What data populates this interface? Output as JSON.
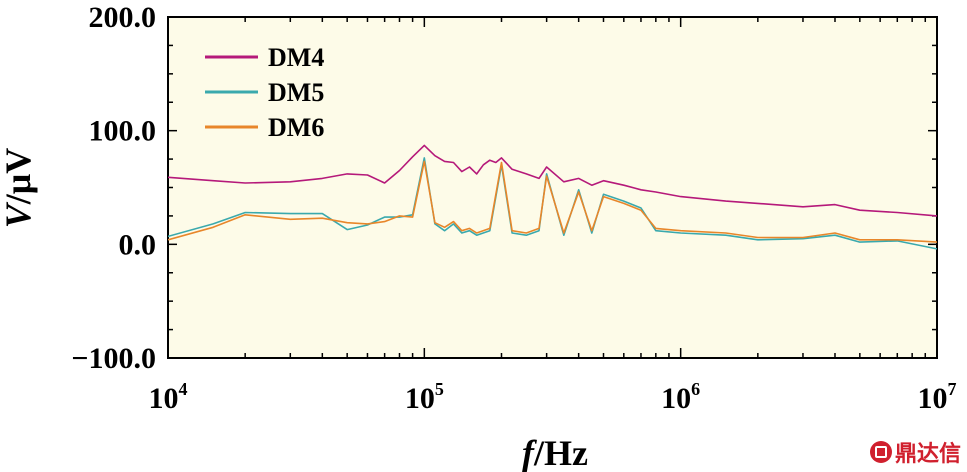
{
  "chart_data": {
    "type": "line",
    "title": "",
    "xlabel_italic": "f",
    "xlabel_rest": "/Hz",
    "ylabel_italic": "V",
    "ylabel_rest": "/μV",
    "x_scale": "log",
    "xlim": [
      10000,
      10000000
    ],
    "ylim": [
      -100,
      200
    ],
    "plot_background": "#fdfbe8",
    "y_ticks": [
      {
        "value": 200,
        "label": "200.0"
      },
      {
        "value": 100,
        "label": "100.0"
      },
      {
        "value": 0,
        "label": "0.0"
      },
      {
        "value": -100,
        "label": "−100.0"
      }
    ],
    "x_ticks": [
      {
        "value": 10000,
        "base": "10",
        "exp": "4"
      },
      {
        "value": 100000,
        "base": "10",
        "exp": "5"
      },
      {
        "value": 1000000,
        "base": "10",
        "exp": "6"
      },
      {
        "value": 10000000,
        "base": "10",
        "exp": "7"
      }
    ],
    "legend_position": "top-left",
    "series": [
      {
        "name": "DM4",
        "color": "#b5197a",
        "points": [
          [
            10000,
            59
          ],
          [
            15000,
            56
          ],
          [
            20000,
            54
          ],
          [
            30000,
            55
          ],
          [
            40000,
            58
          ],
          [
            50000,
            62
          ],
          [
            60000,
            61
          ],
          [
            70000,
            54
          ],
          [
            80000,
            65
          ],
          [
            90000,
            77
          ],
          [
            100000,
            87
          ],
          [
            110000,
            78
          ],
          [
            120000,
            73
          ],
          [
            130000,
            72
          ],
          [
            140000,
            64
          ],
          [
            150000,
            68
          ],
          [
            160000,
            62
          ],
          [
            170000,
            70
          ],
          [
            180000,
            74
          ],
          [
            190000,
            72
          ],
          [
            200000,
            76
          ],
          [
            220000,
            66
          ],
          [
            250000,
            62
          ],
          [
            280000,
            58
          ],
          [
            300000,
            68
          ],
          [
            350000,
            55
          ],
          [
            400000,
            58
          ],
          [
            450000,
            52
          ],
          [
            500000,
            56
          ],
          [
            600000,
            52
          ],
          [
            700000,
            48
          ],
          [
            800000,
            46
          ],
          [
            1000000,
            42
          ],
          [
            1500000,
            38
          ],
          [
            2000000,
            36
          ],
          [
            3000000,
            33
          ],
          [
            4000000,
            35
          ],
          [
            5000000,
            30
          ],
          [
            7000000,
            28
          ],
          [
            10000000,
            25
          ]
        ]
      },
      {
        "name": "DM5",
        "color": "#3aa9ad",
        "points": [
          [
            10000,
            7
          ],
          [
            15000,
            18
          ],
          [
            20000,
            28
          ],
          [
            30000,
            27
          ],
          [
            40000,
            27
          ],
          [
            50000,
            13
          ],
          [
            60000,
            17
          ],
          [
            70000,
            24
          ],
          [
            80000,
            24
          ],
          [
            90000,
            26
          ],
          [
            100000,
            76
          ],
          [
            110000,
            18
          ],
          [
            120000,
            12
          ],
          [
            130000,
            18
          ],
          [
            140000,
            10
          ],
          [
            150000,
            12
          ],
          [
            160000,
            8
          ],
          [
            180000,
            12
          ],
          [
            200000,
            70
          ],
          [
            220000,
            10
          ],
          [
            250000,
            8
          ],
          [
            280000,
            12
          ],
          [
            300000,
            62
          ],
          [
            350000,
            8
          ],
          [
            400000,
            48
          ],
          [
            450000,
            10
          ],
          [
            500000,
            44
          ],
          [
            600000,
            38
          ],
          [
            700000,
            32
          ],
          [
            800000,
            12
          ],
          [
            1000000,
            10
          ],
          [
            1500000,
            8
          ],
          [
            2000000,
            4
          ],
          [
            3000000,
            5
          ],
          [
            4000000,
            8
          ],
          [
            5000000,
            2
          ],
          [
            7000000,
            3
          ],
          [
            10000000,
            -4
          ]
        ]
      },
      {
        "name": "DM6",
        "color": "#e8862a",
        "points": [
          [
            10000,
            4
          ],
          [
            15000,
            15
          ],
          [
            20000,
            26
          ],
          [
            30000,
            22
          ],
          [
            40000,
            23
          ],
          [
            50000,
            19
          ],
          [
            60000,
            18
          ],
          [
            70000,
            20
          ],
          [
            80000,
            25
          ],
          [
            90000,
            24
          ],
          [
            100000,
            73
          ],
          [
            110000,
            19
          ],
          [
            120000,
            15
          ],
          [
            130000,
            20
          ],
          [
            140000,
            12
          ],
          [
            150000,
            14
          ],
          [
            160000,
            10
          ],
          [
            180000,
            14
          ],
          [
            200000,
            72
          ],
          [
            220000,
            12
          ],
          [
            250000,
            10
          ],
          [
            280000,
            14
          ],
          [
            300000,
            60
          ],
          [
            350000,
            10
          ],
          [
            400000,
            46
          ],
          [
            450000,
            12
          ],
          [
            500000,
            42
          ],
          [
            600000,
            36
          ],
          [
            700000,
            30
          ],
          [
            800000,
            14
          ],
          [
            1000000,
            12
          ],
          [
            1500000,
            10
          ],
          [
            2000000,
            6
          ],
          [
            3000000,
            6
          ],
          [
            4000000,
            10
          ],
          [
            5000000,
            4
          ],
          [
            7000000,
            4
          ],
          [
            10000000,
            2
          ]
        ]
      }
    ]
  },
  "watermark": {
    "text": "鼎达信"
  }
}
